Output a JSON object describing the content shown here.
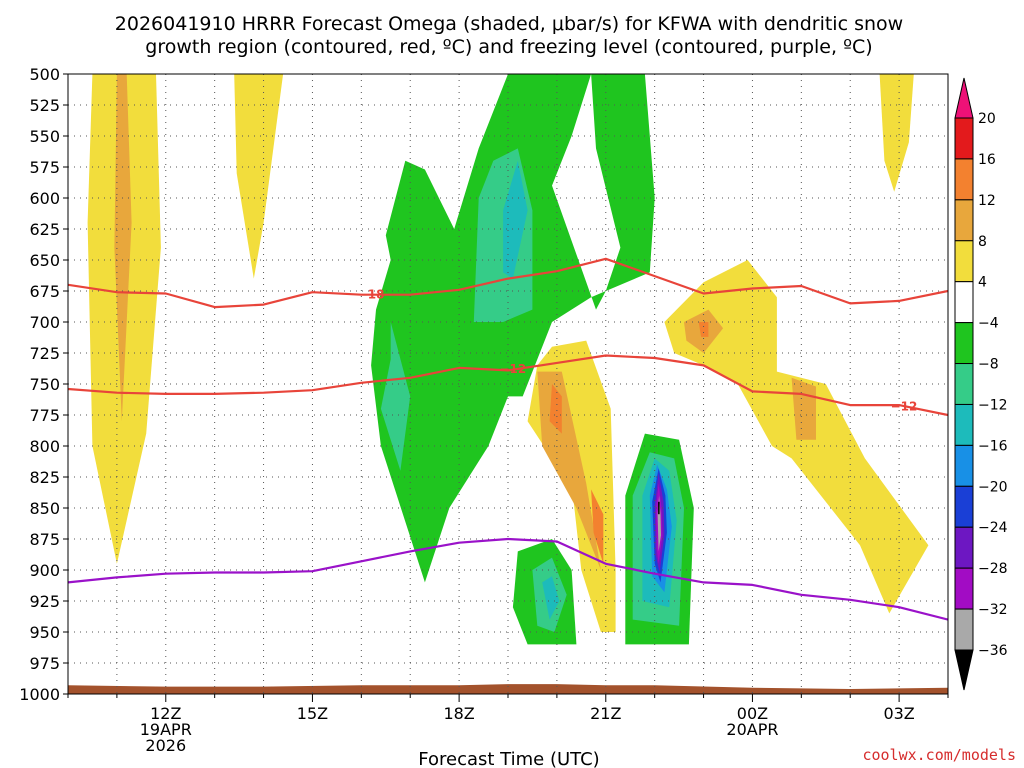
{
  "chart_data": {
    "type": "contour",
    "title_lines": [
      "2026041910 HRRR Forecast Omega (shaded, μbar/s) for KFWA with dendritic snow",
      "growth region (contoured, red, ºC) and freezing level (contoured, purple, ºC)"
    ],
    "xlabel": "Forecast Time (UTC)",
    "credit": "coolwx.com/models",
    "x_ticks": [
      {
        "label": "12Z",
        "hour": 12,
        "sub": [
          "19APR",
          "2026"
        ]
      },
      {
        "label": "15Z",
        "hour": 15,
        "sub": []
      },
      {
        "label": "18Z",
        "hour": 18,
        "sub": []
      },
      {
        "label": "21Z",
        "hour": 21,
        "sub": []
      },
      {
        "label": "00Z",
        "hour": 24,
        "sub": [
          "20APR"
        ]
      },
      {
        "label": "03Z",
        "hour": 27,
        "sub": []
      }
    ],
    "x_range_hours": [
      10,
      28
    ],
    "y_levels_hpa": [
      "500",
      "525",
      "550",
      "575",
      "600",
      "625",
      "650",
      "675",
      "700",
      "725",
      "750",
      "775",
      "800",
      "825",
      "850",
      "875",
      "900",
      "925",
      "950",
      "975",
      "1000"
    ],
    "colorbar": {
      "labels": [
        "20",
        "16",
        "12",
        "8",
        "4",
        "−4",
        "−8",
        "−12",
        "−16",
        "−20",
        "−24",
        "−28",
        "−32",
        "−36"
      ],
      "colors": [
        "#e31a1c",
        "#f3812f",
        "#e8a73c",
        "#f2dd3c",
        "#ffffff",
        "#1fc51f",
        "#35cc88",
        "#1dbbbb",
        "#1890e6",
        "#1a3fd6",
        "#6d17c2",
        "#a20cc4",
        "#a9a9a9"
      ],
      "top_color": "#ee1177",
      "bottom_color": "#000000"
    },
    "contours": [
      {
        "name": "-18",
        "color": "#e8443a",
        "points": [
          [
            10,
            670
          ],
          [
            11,
            676
          ],
          [
            12,
            677
          ],
          [
            13,
            688
          ],
          [
            14,
            686
          ],
          [
            15,
            676
          ],
          [
            16,
            678
          ],
          [
            17,
            678
          ],
          [
            18,
            674
          ],
          [
            19,
            665
          ],
          [
            20,
            659
          ],
          [
            21,
            649
          ],
          [
            22,
            663
          ],
          [
            23,
            677
          ],
          [
            24,
            673
          ],
          [
            25,
            671
          ],
          [
            26,
            685
          ],
          [
            27,
            683
          ],
          [
            28,
            675
          ]
        ]
      },
      {
        "name": "-12",
        "color": "#e8443a",
        "points": [
          [
            10,
            754
          ],
          [
            11,
            757
          ],
          [
            12,
            758
          ],
          [
            13,
            758
          ],
          [
            14,
            757
          ],
          [
            15,
            755
          ],
          [
            16,
            749
          ],
          [
            17,
            745
          ],
          [
            18,
            737
          ],
          [
            19,
            739
          ],
          [
            20,
            733
          ],
          [
            21,
            727
          ],
          [
            22,
            729
          ],
          [
            23,
            735
          ],
          [
            24,
            756
          ],
          [
            25,
            758
          ],
          [
            26,
            767
          ],
          [
            27,
            767
          ],
          [
            28,
            775
          ]
        ]
      },
      {
        "name": "freezing",
        "color": "#9a12c9",
        "points": [
          [
            10,
            910
          ],
          [
            11,
            906
          ],
          [
            12,
            903
          ],
          [
            13,
            902
          ],
          [
            14,
            902
          ],
          [
            15,
            901
          ],
          [
            16,
            893
          ],
          [
            17,
            885
          ],
          [
            18,
            878
          ],
          [
            19,
            875
          ],
          [
            20,
            877
          ],
          [
            21,
            895
          ],
          [
            22,
            903
          ],
          [
            23,
            910
          ],
          [
            24,
            912
          ],
          [
            25,
            920
          ],
          [
            26,
            924
          ],
          [
            27,
            930
          ],
          [
            28,
            940
          ]
        ]
      }
    ],
    "contour_labels": [
      {
        "text": "−18",
        "hour": 16.2,
        "hpa": 678
      },
      {
        "text": "−12",
        "hour": 19.1,
        "hpa": 738
      },
      {
        "text": "−12",
        "hour": 27.1,
        "hpa": 768
      }
    ],
    "fields": [
      {
        "color": "#f2dd3c",
        "points": [
          [
            10.5,
            500
          ],
          [
            11.8,
            500
          ],
          [
            11.9,
            640
          ],
          [
            11.6,
            790
          ],
          [
            11.0,
            895
          ],
          [
            10.5,
            800
          ],
          [
            10.4,
            620
          ]
        ]
      },
      {
        "color": "#e8a73c",
        "points": [
          [
            11.0,
            500
          ],
          [
            11.2,
            500
          ],
          [
            11.3,
            620
          ],
          [
            11.1,
            780
          ],
          [
            10.95,
            640
          ]
        ]
      },
      {
        "color": "#f2dd3c",
        "points": [
          [
            13.4,
            500
          ],
          [
            14.4,
            500
          ],
          [
            14.0,
            620
          ],
          [
            13.8,
            665
          ],
          [
            13.45,
            580
          ]
        ]
      },
      {
        "color": "#f2dd3c",
        "points": [
          [
            26.6,
            500
          ],
          [
            27.3,
            500
          ],
          [
            27.2,
            555
          ],
          [
            26.9,
            595
          ],
          [
            26.7,
            570
          ]
        ]
      },
      {
        "color": "#f2dd3c",
        "points": [
          [
            22.2,
            700
          ],
          [
            23.0,
            668
          ],
          [
            23.9,
            650
          ],
          [
            24.5,
            680
          ],
          [
            24.5,
            740
          ],
          [
            25.5,
            750
          ],
          [
            26.3,
            810
          ],
          [
            27.6,
            880
          ],
          [
            26.8,
            935
          ],
          [
            26.2,
            880
          ],
          [
            25.4,
            840
          ],
          [
            24.8,
            810
          ],
          [
            24.4,
            800
          ],
          [
            23.7,
            750
          ],
          [
            23.0,
            735
          ],
          [
            22.4,
            725
          ]
        ]
      },
      {
        "color": "#e8a73c",
        "points": [
          [
            22.6,
            700
          ],
          [
            23.1,
            690
          ],
          [
            23.4,
            705
          ],
          [
            23.0,
            725
          ],
          [
            22.65,
            715
          ]
        ]
      },
      {
        "color": "#e8a73c",
        "points": [
          [
            24.8,
            745
          ],
          [
            25.3,
            752
          ],
          [
            25.3,
            795
          ],
          [
            24.9,
            795
          ]
        ]
      },
      {
        "color": "#f3812f",
        "points": [
          [
            22.9,
            700
          ],
          [
            23.1,
            700
          ],
          [
            23.1,
            712
          ],
          [
            22.95,
            712
          ]
        ]
      },
      {
        "color": "#f2dd3c",
        "points": [
          [
            19.9,
            720
          ],
          [
            20.6,
            715
          ],
          [
            21.1,
            770
          ],
          [
            21.2,
            900
          ],
          [
            21.2,
            950
          ],
          [
            20.9,
            950
          ],
          [
            20.5,
            900
          ],
          [
            20.3,
            830
          ],
          [
            19.9,
            810
          ],
          [
            19.4,
            780
          ],
          [
            19.6,
            735
          ]
        ]
      },
      {
        "color": "#e8a73c",
        "points": [
          [
            19.6,
            740
          ],
          [
            20.1,
            740
          ],
          [
            20.6,
            830
          ],
          [
            20.9,
            900
          ],
          [
            20.4,
            850
          ],
          [
            19.7,
            800
          ]
        ]
      },
      {
        "color": "#f3812f",
        "points": [
          [
            19.9,
            750
          ],
          [
            20.1,
            760
          ],
          [
            20.1,
            790
          ],
          [
            19.85,
            780
          ]
        ]
      },
      {
        "color": "#f3812f",
        "points": [
          [
            20.7,
            835
          ],
          [
            20.95,
            855
          ],
          [
            20.95,
            895
          ],
          [
            20.75,
            870
          ]
        ]
      },
      {
        "color": "#1fc51f",
        "points": [
          [
            16.2,
            500
          ],
          [
            16.5,
            630
          ],
          [
            16.9,
            570
          ],
          [
            17.3,
            577
          ],
          [
            17.9,
            625
          ],
          [
            18.4,
            560
          ],
          [
            19.0,
            500
          ],
          [
            20.7,
            500
          ],
          [
            20.3,
            550
          ],
          [
            19.9,
            590
          ],
          [
            20.8,
            690
          ],
          [
            21.0,
            675
          ],
          [
            21.3,
            640
          ],
          [
            20.8,
            560
          ],
          [
            20.7,
            500
          ],
          [
            21.8,
            500
          ],
          [
            22.0,
            600
          ],
          [
            21.9,
            660
          ],
          [
            20.7,
            680
          ],
          [
            19.9,
            700
          ],
          [
            19.3,
            760
          ],
          [
            19.0,
            760
          ],
          [
            18.6,
            800
          ],
          [
            17.8,
            850
          ],
          [
            17.3,
            910
          ],
          [
            16.4,
            800
          ],
          [
            16.2,
            735
          ],
          [
            16.3,
            690
          ],
          [
            16.6,
            650
          ],
          [
            16.5,
            630
          ]
        ]
      },
      {
        "color": "#ffffff",
        "points": [
          [
            16.4,
            575
          ],
          [
            16.2,
            500
          ],
          [
            16.6,
            500
          ],
          [
            16.85,
            570
          ]
        ]
      },
      {
        "color": "#35cc88",
        "points": [
          [
            18.3,
            700
          ],
          [
            18.9,
            700
          ],
          [
            19.5,
            690
          ],
          [
            19.5,
            610
          ],
          [
            19.2,
            560
          ],
          [
            18.7,
            570
          ],
          [
            18.4,
            600
          ]
        ]
      },
      {
        "color": "#1dbbbb",
        "points": [
          [
            18.9,
            660
          ],
          [
            19.1,
            665
          ],
          [
            19.4,
            610
          ],
          [
            19.2,
            570
          ],
          [
            18.9,
            610
          ]
        ]
      },
      {
        "color": "#35cc88",
        "points": [
          [
            16.6,
            700
          ],
          [
            17.0,
            760
          ],
          [
            16.8,
            820
          ],
          [
            16.4,
            770
          ],
          [
            16.6,
            730
          ]
        ]
      },
      {
        "color": "#1fc51f",
        "points": [
          [
            19.2,
            885
          ],
          [
            19.9,
            875
          ],
          [
            20.3,
            900
          ],
          [
            20.4,
            960
          ],
          [
            19.4,
            960
          ],
          [
            19.1,
            930
          ]
        ]
      },
      {
        "color": "#35cc88",
        "points": [
          [
            19.5,
            900
          ],
          [
            19.9,
            890
          ],
          [
            20.2,
            920
          ],
          [
            19.95,
            950
          ],
          [
            19.6,
            945
          ]
        ]
      },
      {
        "color": "#1dbbbb",
        "points": [
          [
            19.7,
            910
          ],
          [
            19.9,
            905
          ],
          [
            20.05,
            925
          ],
          [
            19.85,
            940
          ]
        ]
      },
      {
        "color": "#1fc51f",
        "points": [
          [
            21.4,
            840
          ],
          [
            21.8,
            790
          ],
          [
            22.5,
            795
          ],
          [
            22.8,
            850
          ],
          [
            22.7,
            960
          ],
          [
            21.4,
            960
          ]
        ]
      },
      {
        "color": "#35cc88",
        "points": [
          [
            21.55,
            840
          ],
          [
            21.9,
            805
          ],
          [
            22.4,
            810
          ],
          [
            22.6,
            850
          ],
          [
            22.5,
            945
          ],
          [
            21.55,
            940
          ]
        ]
      },
      {
        "color": "#1dbbbb",
        "points": [
          [
            21.75,
            840
          ],
          [
            22.0,
            810
          ],
          [
            22.3,
            820
          ],
          [
            22.45,
            860
          ],
          [
            22.3,
            930
          ],
          [
            21.75,
            925
          ]
        ]
      },
      {
        "color": "#1890e6",
        "points": [
          [
            21.9,
            840
          ],
          [
            22.05,
            815
          ],
          [
            22.25,
            835
          ],
          [
            22.35,
            865
          ],
          [
            22.2,
            918
          ],
          [
            21.95,
            905
          ]
        ]
      },
      {
        "color": "#1a3fd6",
        "points": [
          [
            21.95,
            845
          ],
          [
            22.08,
            818
          ],
          [
            22.22,
            840
          ],
          [
            22.25,
            870
          ],
          [
            22.12,
            910
          ],
          [
            22.0,
            895
          ]
        ]
      },
      {
        "color": "#6d17c2",
        "points": [
          [
            22.0,
            848
          ],
          [
            22.08,
            822
          ],
          [
            22.18,
            845
          ],
          [
            22.2,
            872
          ],
          [
            22.1,
            902
          ],
          [
            22.02,
            888
          ]
        ]
      },
      {
        "color": "#a20cc4",
        "points": [
          [
            22.03,
            850
          ],
          [
            22.08,
            830
          ],
          [
            22.14,
            850
          ],
          [
            22.16,
            872
          ],
          [
            22.08,
            895
          ],
          [
            22.04,
            882
          ]
        ]
      },
      {
        "color": "#a9a9a9",
        "points": [
          [
            22.06,
            855
          ],
          [
            22.09,
            840
          ],
          [
            22.12,
            855
          ],
          [
            22.13,
            872
          ],
          [
            22.08,
            885
          ]
        ]
      },
      {
        "color": "#000000",
        "points": [
          [
            22.07,
            845
          ],
          [
            22.1,
            845
          ],
          [
            22.1,
            855
          ],
          [
            22.07,
            855
          ]
        ]
      }
    ],
    "ground_color": "#a3522c",
    "ground_top_hpa": [
      [
        10,
        993
      ],
      [
        12,
        994
      ],
      [
        14,
        994
      ],
      [
        16,
        993
      ],
      [
        18,
        993
      ],
      [
        19,
        992
      ],
      [
        20,
        992
      ],
      [
        21,
        993
      ],
      [
        22,
        993
      ],
      [
        24,
        995
      ],
      [
        26,
        996
      ],
      [
        28,
        995
      ]
    ]
  }
}
